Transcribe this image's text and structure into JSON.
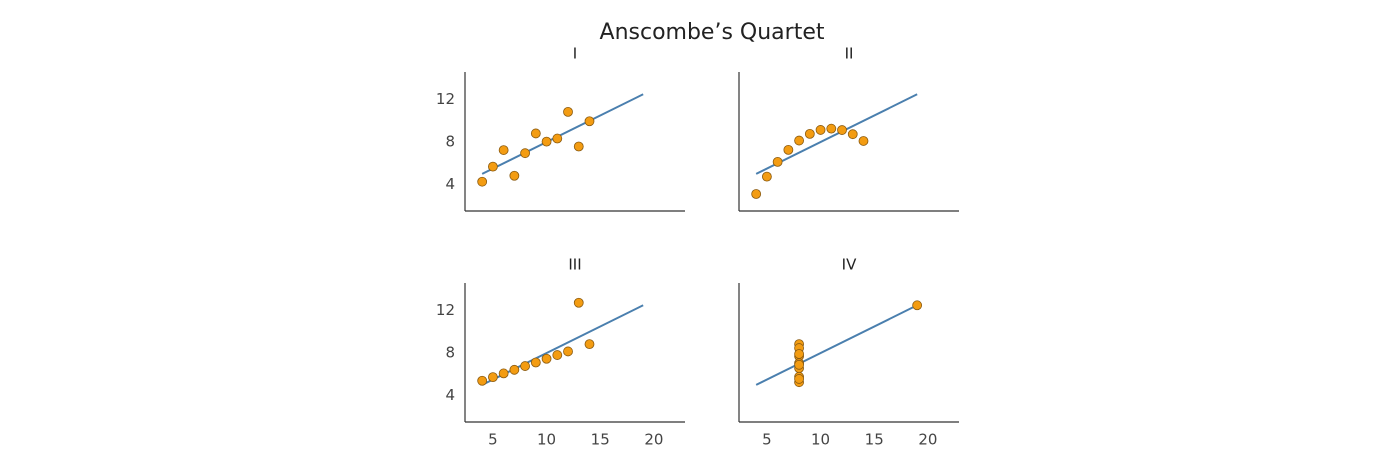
{
  "title": "Anscombe’s Quartet",
  "chart_data": [
    {
      "type": "scatter",
      "title": "I",
      "x": [
        10,
        8,
        13,
        9,
        11,
        14,
        6,
        4,
        12,
        7,
        5
      ],
      "y": [
        8.04,
        6.95,
        7.58,
        8.81,
        8.33,
        9.96,
        7.24,
        4.26,
        10.84,
        4.82,
        5.68
      ],
      "color": "#f39c12",
      "edge_color": "#8a5a10",
      "fit": {
        "x": [
          4,
          19
        ],
        "y": [
          5,
          12.5
        ],
        "color": "#4a7fae"
      },
      "xlim": [
        2.4,
        22.9
      ],
      "ylim": [
        1.5,
        14.6
      ],
      "yticks": [
        4,
        8,
        12
      ]
    },
    {
      "type": "scatter",
      "title": "II",
      "x": [
        10,
        8,
        13,
        9,
        11,
        14,
        6,
        4,
        12,
        7,
        5
      ],
      "y": [
        9.14,
        8.14,
        8.74,
        8.77,
        9.26,
        8.1,
        6.13,
        3.1,
        9.13,
        7.26,
        4.74
      ],
      "color": "#f39c12",
      "edge_color": "#8a5a10",
      "fit": {
        "x": [
          4,
          19
        ],
        "y": [
          5,
          12.5
        ],
        "color": "#4a7fae"
      },
      "xlim": [
        2.4,
        22.9
      ],
      "ylim": [
        1.5,
        14.6
      ]
    },
    {
      "type": "scatter",
      "title": "III",
      "x": [
        10,
        8,
        13,
        9,
        11,
        14,
        6,
        4,
        12,
        7,
        5
      ],
      "y": [
        7.46,
        6.77,
        12.74,
        7.11,
        7.81,
        8.84,
        6.08,
        5.39,
        8.15,
        6.42,
        5.73
      ],
      "color": "#f39c12",
      "edge_color": "#8a5a10",
      "fit": {
        "x": [
          4,
          19
        ],
        "y": [
          5,
          12.5
        ],
        "color": "#4a7fae"
      },
      "xlim": [
        2.4,
        22.9
      ],
      "ylim": [
        1.5,
        14.6
      ],
      "xticks": [
        5,
        10,
        15,
        20
      ],
      "yticks": [
        4,
        8,
        12
      ]
    },
    {
      "type": "scatter",
      "title": "IV",
      "x": [
        8,
        8,
        8,
        8,
        8,
        8,
        8,
        19,
        8,
        8,
        8
      ],
      "y": [
        6.58,
        5.76,
        7.71,
        8.84,
        8.47,
        7.04,
        5.25,
        12.5,
        5.56,
        7.91,
        6.89
      ],
      "color": "#f39c12",
      "edge_color": "#8a5a10",
      "fit": {
        "x": [
          4,
          19
        ],
        "y": [
          5,
          12.5
        ],
        "color": "#4a7fae"
      },
      "xlim": [
        2.4,
        22.9
      ],
      "ylim": [
        1.5,
        14.6
      ],
      "xticks": [
        5,
        10,
        15,
        20
      ]
    }
  ]
}
